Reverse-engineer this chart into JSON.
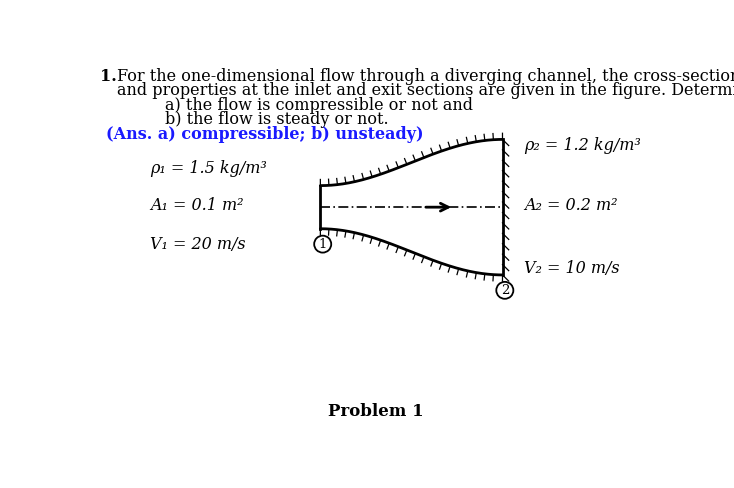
{
  "background_color": "#ffffff",
  "text_color": "#000000",
  "answer_color": "#1a1aff",
  "channel_color": "#000000",
  "problem_label": "Problem 1",
  "title_number": "1.",
  "title_rest": "For the one-dimensional flow through a diverging channel, the cross-sectional areas",
  "title_line2": "and properties at the inlet and exit sections are given in the figure. Determine whether",
  "item_a": "a) the flow is compressible or not and",
  "item_b": "b) the flow is steady or not.",
  "answer": "(Ans. a) compressible; b) unsteady)",
  "rho1": "ρ₁ = 1.5 kg/m³",
  "A1": "A₁ = 0.1 m²",
  "V1": "V₁ = 20 m/s",
  "rho2": "ρ₂ = 1.2 kg/m³",
  "A2": "A₂ = 0.2 m²",
  "V2": "V₂ = 10 m/s"
}
